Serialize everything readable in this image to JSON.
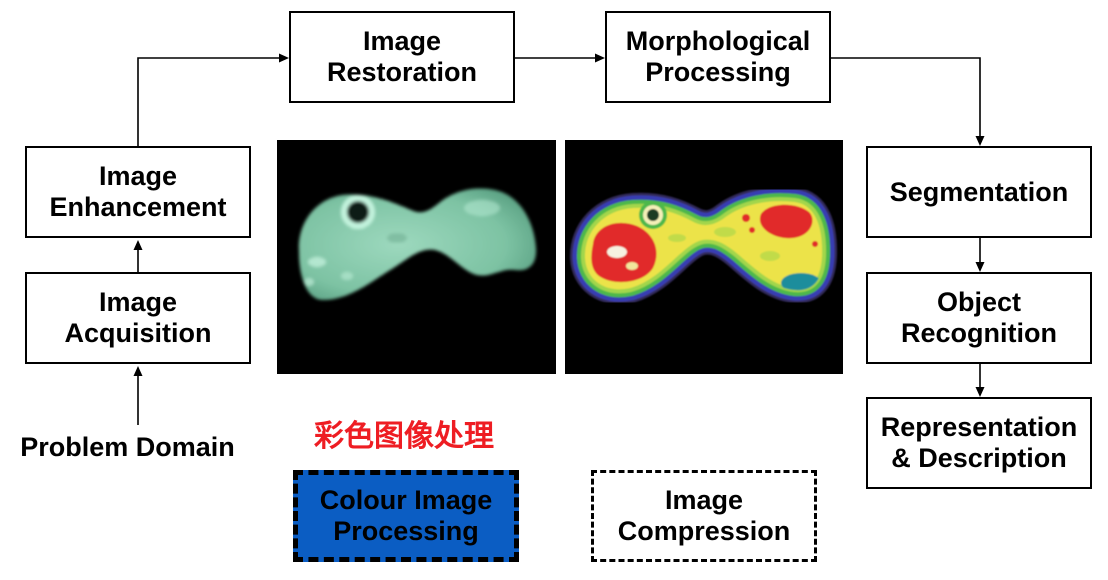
{
  "problem_domain": "Problem Domain",
  "chinese_caption": "彩色图像处理",
  "boxes": {
    "acquisition": {
      "lines": [
        "Image",
        "Acquisition"
      ]
    },
    "enhancement": {
      "lines": [
        "Image",
        "Enhancement"
      ]
    },
    "restoration": {
      "lines": [
        "Image",
        "Restoration"
      ]
    },
    "morphological": {
      "lines": [
        "Morphological",
        "Processing"
      ]
    },
    "segmentation": {
      "lines": [
        "Segmentation"
      ]
    },
    "recognition": {
      "lines": [
        "Object",
        "Recognition"
      ]
    },
    "representation": {
      "lines": [
        "Representation",
        "& Description"
      ]
    },
    "colour": {
      "lines": [
        "Colour Image",
        "Processing"
      ]
    },
    "compression": {
      "lines": [
        "Image",
        "Compression"
      ]
    }
  },
  "colors": {
    "highlight_fill": "#0b5dc3",
    "caption_red": "#ee1d23"
  }
}
